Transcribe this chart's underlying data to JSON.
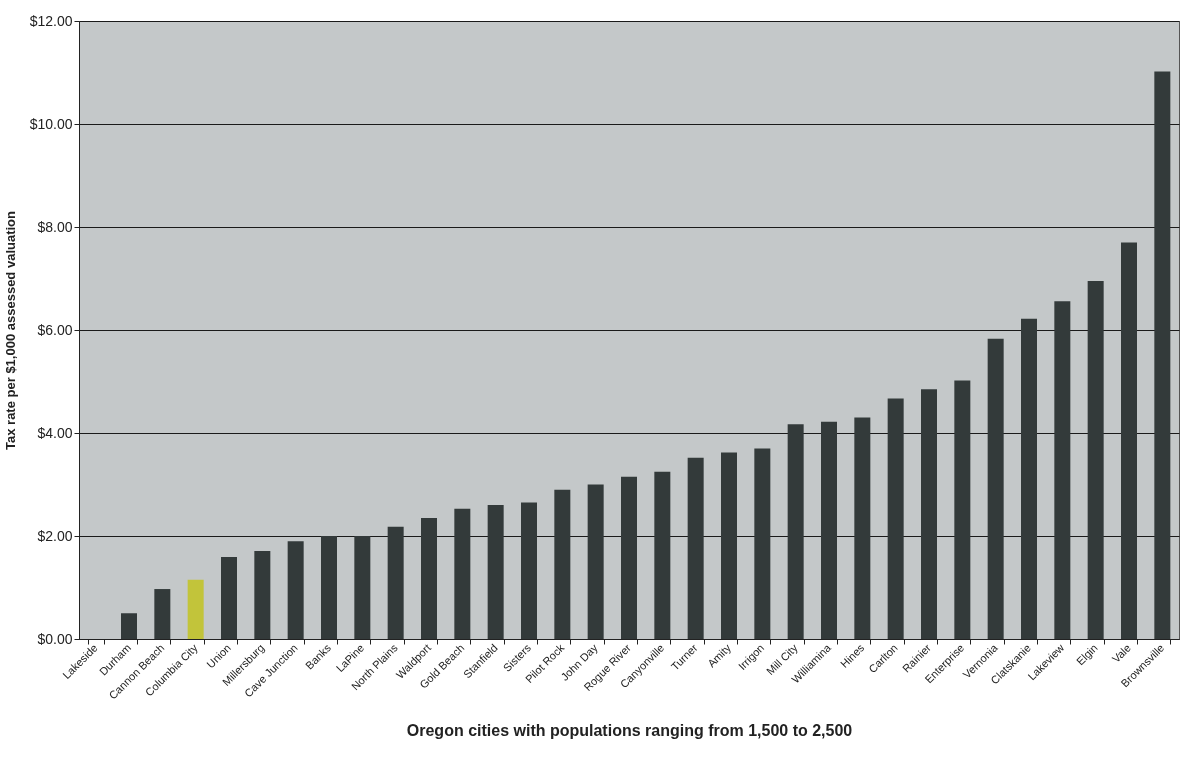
{
  "chart_data": {
    "type": "bar",
    "xlabel": "Oregon cities with populations ranging from 1,500 to 2,500",
    "ylabel": "Tax rate per $1,000 assessed valuation",
    "categories": [
      "Lakeside",
      "Durham",
      "Cannon Beach",
      "Columbia City",
      "Union",
      "Millersburg",
      "Cave Junction",
      "Banks",
      "LaPine",
      "North Plains",
      "Waldport",
      "Gold Beach",
      "Stanfield",
      "Sisters",
      "Pilot Rock",
      "John Day",
      "Rogue River",
      "Canyonville",
      "Turner",
      "Amity",
      "Irrigon",
      "Mill City",
      "Williamina",
      "Hines",
      "Carlton",
      "Rainier",
      "Enterprise",
      "Vernonia",
      "Clatskanie",
      "Lakeview",
      "Elgin",
      "Vale",
      "Brownsville"
    ],
    "values": [
      0,
      0.5,
      0.97,
      1.15,
      1.59,
      1.71,
      1.9,
      2.0,
      2.0,
      2.18,
      2.35,
      2.53,
      2.6,
      2.65,
      2.9,
      3.0,
      3.15,
      3.25,
      3.52,
      3.62,
      3.7,
      4.17,
      4.22,
      4.3,
      4.67,
      4.85,
      5.02,
      5.83,
      6.22,
      6.56,
      6.95,
      7.7,
      11.02
    ],
    "colors": [
      "#333a3a",
      "#333a3a",
      "#333a3a",
      "#c2c43a",
      "#333a3a",
      "#333a3a",
      "#333a3a",
      "#333a3a",
      "#333a3a",
      "#333a3a",
      "#333a3a",
      "#333a3a",
      "#333a3a",
      "#333a3a",
      "#333a3a",
      "#333a3a",
      "#333a3a",
      "#333a3a",
      "#333a3a",
      "#333a3a",
      "#333a3a",
      "#333a3a",
      "#333a3a",
      "#333a3a",
      "#333a3a",
      "#333a3a",
      "#333a3a",
      "#333a3a",
      "#333a3a",
      "#333a3a",
      "#333a3a",
      "#333a3a",
      "#333a3a"
    ],
    "ylim": [
      0,
      12
    ],
    "yticks": [
      {
        "value": 0,
        "label": "$0.00"
      },
      {
        "value": 2,
        "label": "$2.00"
      },
      {
        "value": 4,
        "label": "$4.00"
      },
      {
        "value": 6,
        "label": "$6.00"
      },
      {
        "value": 8,
        "label": "$8.00"
      },
      {
        "value": 10,
        "label": "$10.00"
      },
      {
        "value": 12,
        "label": "$12.00"
      }
    ],
    "grid": "y"
  }
}
